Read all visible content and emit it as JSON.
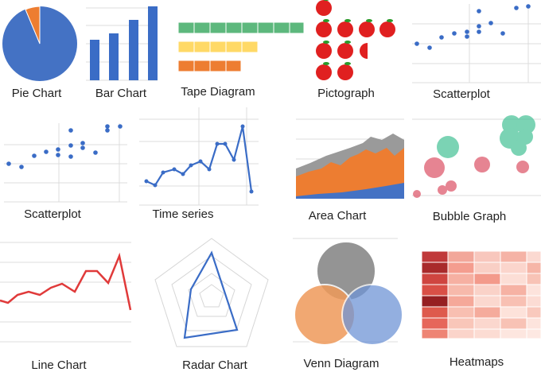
{
  "items": [
    {
      "caption": "Pie Chart"
    },
    {
      "caption": "Bar Chart"
    },
    {
      "caption": "Tape Diagram"
    },
    {
      "caption": "Pictograph"
    },
    {
      "caption": "Scatterplot"
    },
    {
      "caption": "Scatterplot"
    },
    {
      "caption": "Time series"
    },
    {
      "caption": "Area Chart"
    },
    {
      "caption": "Bubble Graph"
    },
    {
      "caption": "Line Chart"
    },
    {
      "caption": "Radar Chart"
    },
    {
      "caption": "Venn Diagram"
    },
    {
      "caption": "Heatmaps"
    }
  ]
}
